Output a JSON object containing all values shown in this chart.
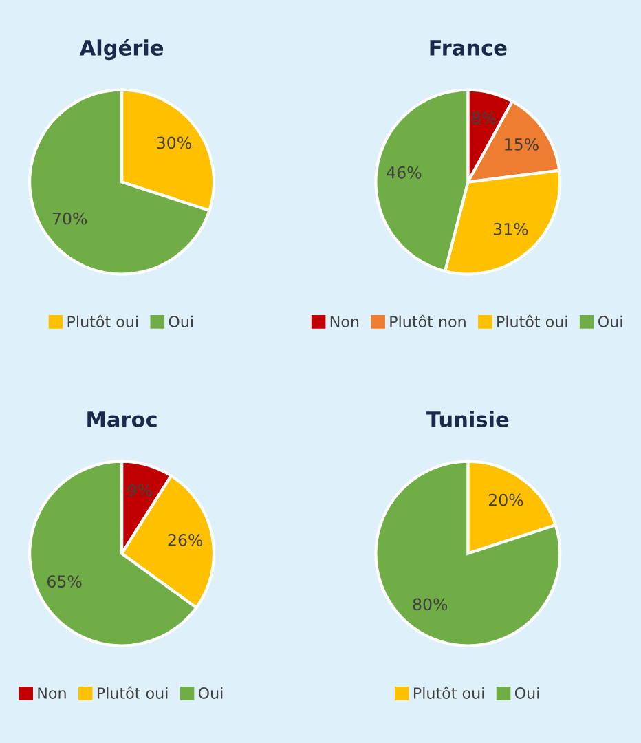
{
  "chart_data": [
    {
      "type": "pie",
      "title": "Algérie",
      "categories": [
        "Plutôt oui",
        "Oui"
      ],
      "values": [
        30,
        70
      ],
      "value_labels": [
        "30%",
        "70%"
      ],
      "colors": [
        "#ffc000",
        "#70ad47"
      ],
      "legend": "bottom"
    },
    {
      "type": "pie",
      "title": "France",
      "categories": [
        "Non",
        "Plutôt non",
        "Plutôt oui",
        "Oui"
      ],
      "values": [
        8,
        15,
        31,
        46
      ],
      "value_labels": [
        "8%",
        "15%",
        "31%",
        "46%"
      ],
      "colors": [
        "#c00000",
        "#ed7d31",
        "#ffc000",
        "#70ad47"
      ],
      "legend": "bottom"
    },
    {
      "type": "pie",
      "title": "Maroc",
      "categories": [
        "Non",
        "Plutôt oui",
        "Oui"
      ],
      "values": [
        9,
        26,
        65
      ],
      "value_labels": [
        "9%",
        "26%",
        "65%"
      ],
      "colors": [
        "#c00000",
        "#ffc000",
        "#70ad47"
      ],
      "legend": "bottom"
    },
    {
      "type": "pie",
      "title": "Tunisie",
      "categories": [
        "Plutôt oui",
        "Oui"
      ],
      "values": [
        20,
        80
      ],
      "value_labels": [
        "20%",
        "80%"
      ],
      "colors": [
        "#ffc000",
        "#70ad47"
      ],
      "legend": "bottom"
    }
  ]
}
